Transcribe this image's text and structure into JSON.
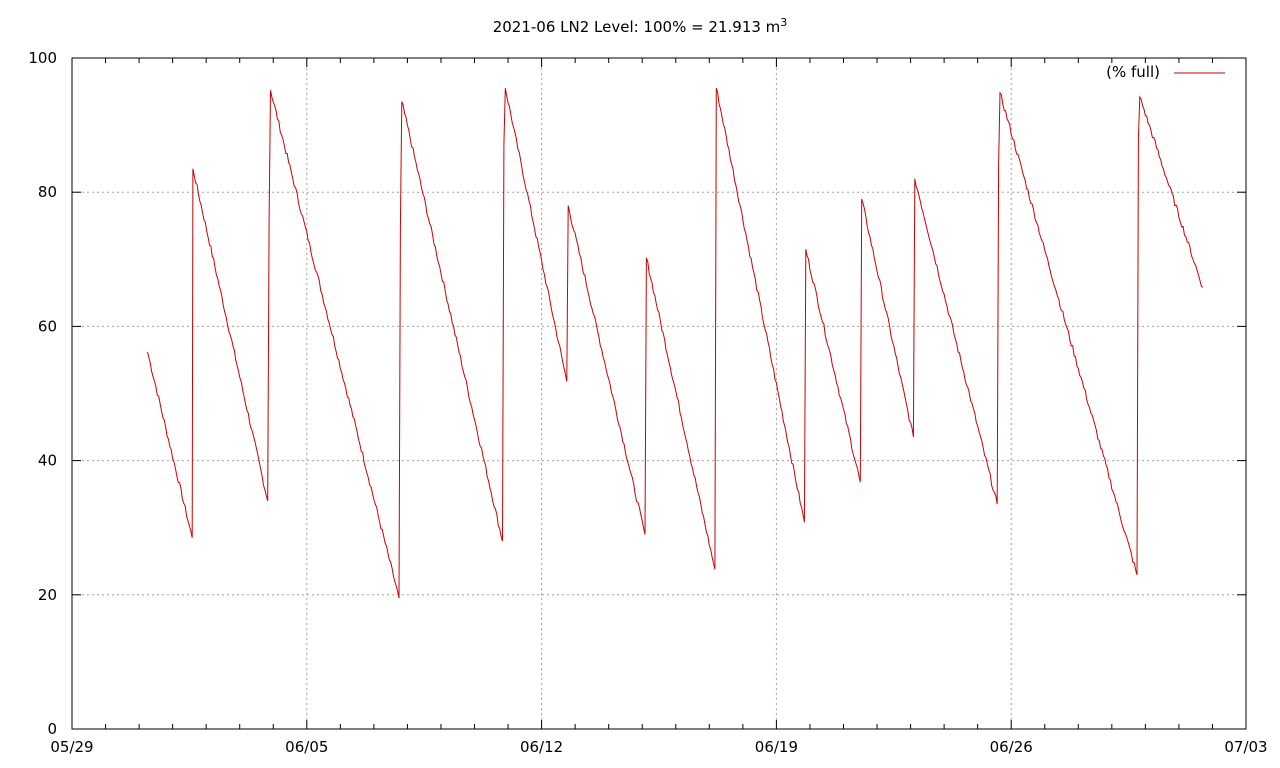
{
  "chart_data": {
    "type": "line",
    "title": "2021-06 LN2 Level: 100% = 21.913 m",
    "title_superscript": "3",
    "xlabel": "",
    "ylabel": "",
    "xlim": [
      "2021-05-29",
      "2021-07-03"
    ],
    "ylim": [
      0,
      100
    ],
    "x_ticks": [
      "05/29",
      "06/05",
      "06/12",
      "06/19",
      "06/26",
      "07/03"
    ],
    "y_ticks": [
      "0",
      "20",
      "40",
      "60",
      "80",
      "100"
    ],
    "grid": true,
    "legend_position": "top-right",
    "series_color": "#cc0000",
    "series": [
      {
        "name": "(% full)",
        "points": [
          [
            "2021-05-31 06:00",
            56.2
          ],
          [
            "2021-06-01 14:00",
            28.5
          ],
          [
            "2021-06-01 14:30",
            83.5
          ],
          [
            "2021-06-03 20:00",
            34.0
          ],
          [
            "2021-06-03 21:00",
            76.0
          ],
          [
            "2021-06-03 22:00",
            95.2
          ],
          [
            "2021-06-07 18:00",
            19.5
          ],
          [
            "2021-06-07 19:00",
            75.0
          ],
          [
            "2021-06-07 20:00",
            93.5
          ],
          [
            "2021-06-10 20:00",
            28.0
          ],
          [
            "2021-06-10 21:00",
            87.0
          ],
          [
            "2021-06-10 22:00",
            95.5
          ],
          [
            "2021-06-12 18:00",
            51.8
          ],
          [
            "2021-06-12 19:00",
            78.0
          ],
          [
            "2021-06-15 02:00",
            29.0
          ],
          [
            "2021-06-15 03:00",
            70.2
          ],
          [
            "2021-06-17 04:00",
            23.8
          ],
          [
            "2021-06-17 05:00",
            95.5
          ],
          [
            "2021-06-19 20:00",
            30.8
          ],
          [
            "2021-06-19 21:00",
            71.5
          ],
          [
            "2021-06-21 12:00",
            36.8
          ],
          [
            "2021-06-21 13:00",
            79.0
          ],
          [
            "2021-06-23 02:00",
            43.5
          ],
          [
            "2021-06-23 03:00",
            82.0
          ],
          [
            "2021-06-25 14:00",
            33.5
          ],
          [
            "2021-06-25 15:00",
            84.0
          ],
          [
            "2021-06-25 16:00",
            94.8
          ],
          [
            "2021-06-29 18:00",
            23.0
          ],
          [
            "2021-06-29 19:00",
            88.0
          ],
          [
            "2021-06-29 20:00",
            94.2
          ],
          [
            "2021-07-01 17:00",
            65.8
          ]
        ]
      }
    ]
  }
}
